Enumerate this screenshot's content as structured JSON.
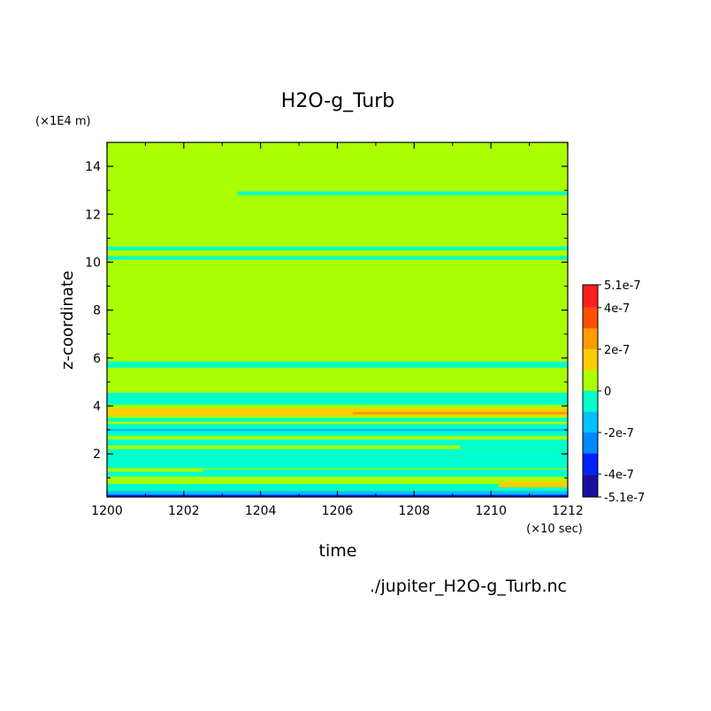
{
  "chart_data": {
    "type": "heatmap",
    "title": "H2O-g_Turb",
    "xlabel": "time",
    "ylabel": "z-coordinate",
    "x_unit": "(×10 sec)",
    "y_unit": "(×1E4 m)",
    "xlim": [
      1200,
      1212
    ],
    "ylim": [
      0.2,
      15
    ],
    "x_ticks": [
      "1200",
      "1202",
      "1204",
      "1206",
      "1208",
      "1210",
      "1212"
    ],
    "y_ticks": [
      "2",
      "4",
      "6",
      "8",
      "10",
      "12",
      "14"
    ],
    "source_file": "./jupiter_H2O-g_Turb.nc",
    "colorbar": {
      "labels": [
        "5.1e-7",
        "4e-7",
        "2e-7",
        "0",
        "-2e-7",
        "-4e-7",
        "-5.1e-7"
      ],
      "levels": [
        -5.1e-07,
        -4e-07,
        -3e-07,
        -2e-07,
        -1e-07,
        0,
        1e-07,
        2e-07,
        3e-07,
        4e-07,
        5.1e-07
      ],
      "colors": [
        "#1a10a0",
        "#0022ff",
        "#0088ff",
        "#00c0ff",
        "#00ffcc",
        "#aaff00",
        "#ffcc00",
        "#ff9a00",
        "#ff5000",
        "#ff2020"
      ]
    },
    "background_color": "#aaff00",
    "bands": [
      {
        "z": [
          0.2,
          0.3
        ],
        "color": "#0022ff"
      },
      {
        "z": [
          0.3,
          0.45
        ],
        "color": "#00c0ff"
      },
      {
        "z": [
          0.45,
          0.75
        ],
        "color": "#00ffcc"
      },
      {
        "z": [
          0.75,
          1.05
        ],
        "color": "#aaff00"
      },
      {
        "z": [
          1.05,
          1.25
        ],
        "color": "#00ffcc"
      },
      {
        "z": [
          1.25,
          1.4
        ],
        "color": "#aaff00"
      },
      {
        "z": [
          1.4,
          2.2
        ],
        "color": "#00ffcc"
      },
      {
        "z": [
          2.2,
          2.35
        ],
        "color": "#aaff00"
      },
      {
        "z": [
          2.35,
          2.6
        ],
        "color": "#00ffcc"
      },
      {
        "z": [
          2.6,
          2.75
        ],
        "color": "#aaff00"
      },
      {
        "z": [
          2.75,
          2.95
        ],
        "color": "#00ffcc"
      },
      {
        "z": [
          2.95,
          3.05
        ],
        "color": "#00c0ff"
      },
      {
        "z": [
          3.05,
          3.25
        ],
        "color": "#00ffcc"
      },
      {
        "z": [
          3.25,
          3.35
        ],
        "color": "#aaff00"
      },
      {
        "z": [
          3.35,
          3.5
        ],
        "color": "#00ffcc"
      },
      {
        "z": [
          3.5,
          3.6
        ],
        "color": "#aaff00"
      },
      {
        "z": [
          3.6,
          3.9
        ],
        "color": "#ffcc00"
      },
      {
        "z": [
          3.9,
          4.05
        ],
        "color": "#aaff00"
      },
      {
        "z": [
          4.05,
          4.55
        ],
        "color": "#00ffcc"
      },
      {
        "z": [
          5.6,
          5.85
        ],
        "color": "#00ffcc"
      },
      {
        "z": [
          10.1,
          10.25
        ],
        "color": "#00ffcc"
      },
      {
        "z": [
          10.5,
          10.65
        ],
        "color": "#00ffcc"
      },
      {
        "z": [
          12.8,
          12.95
        ],
        "color": "#00ffcc",
        "x_start": 1203.4
      }
    ],
    "patches": [
      {
        "x": [
          1200,
          1212
        ],
        "z": [
          0.85,
          1.05
        ],
        "color": "#aaff00"
      },
      {
        "x": [
          1210.2,
          1212
        ],
        "z": [
          0.6,
          0.85
        ],
        "color": "#ffcc00"
      },
      {
        "x": [
          1202.5,
          1212
        ],
        "z": [
          1.15,
          1.35
        ],
        "color": "#00ffcc"
      },
      {
        "x": [
          1206.4,
          1212
        ],
        "z": [
          3.65,
          3.75
        ],
        "color": "#ff9a00"
      },
      {
        "x": [
          1209.2,
          1212
        ],
        "z": [
          2.2,
          2.35
        ],
        "color": "#00ffcc"
      }
    ]
  }
}
